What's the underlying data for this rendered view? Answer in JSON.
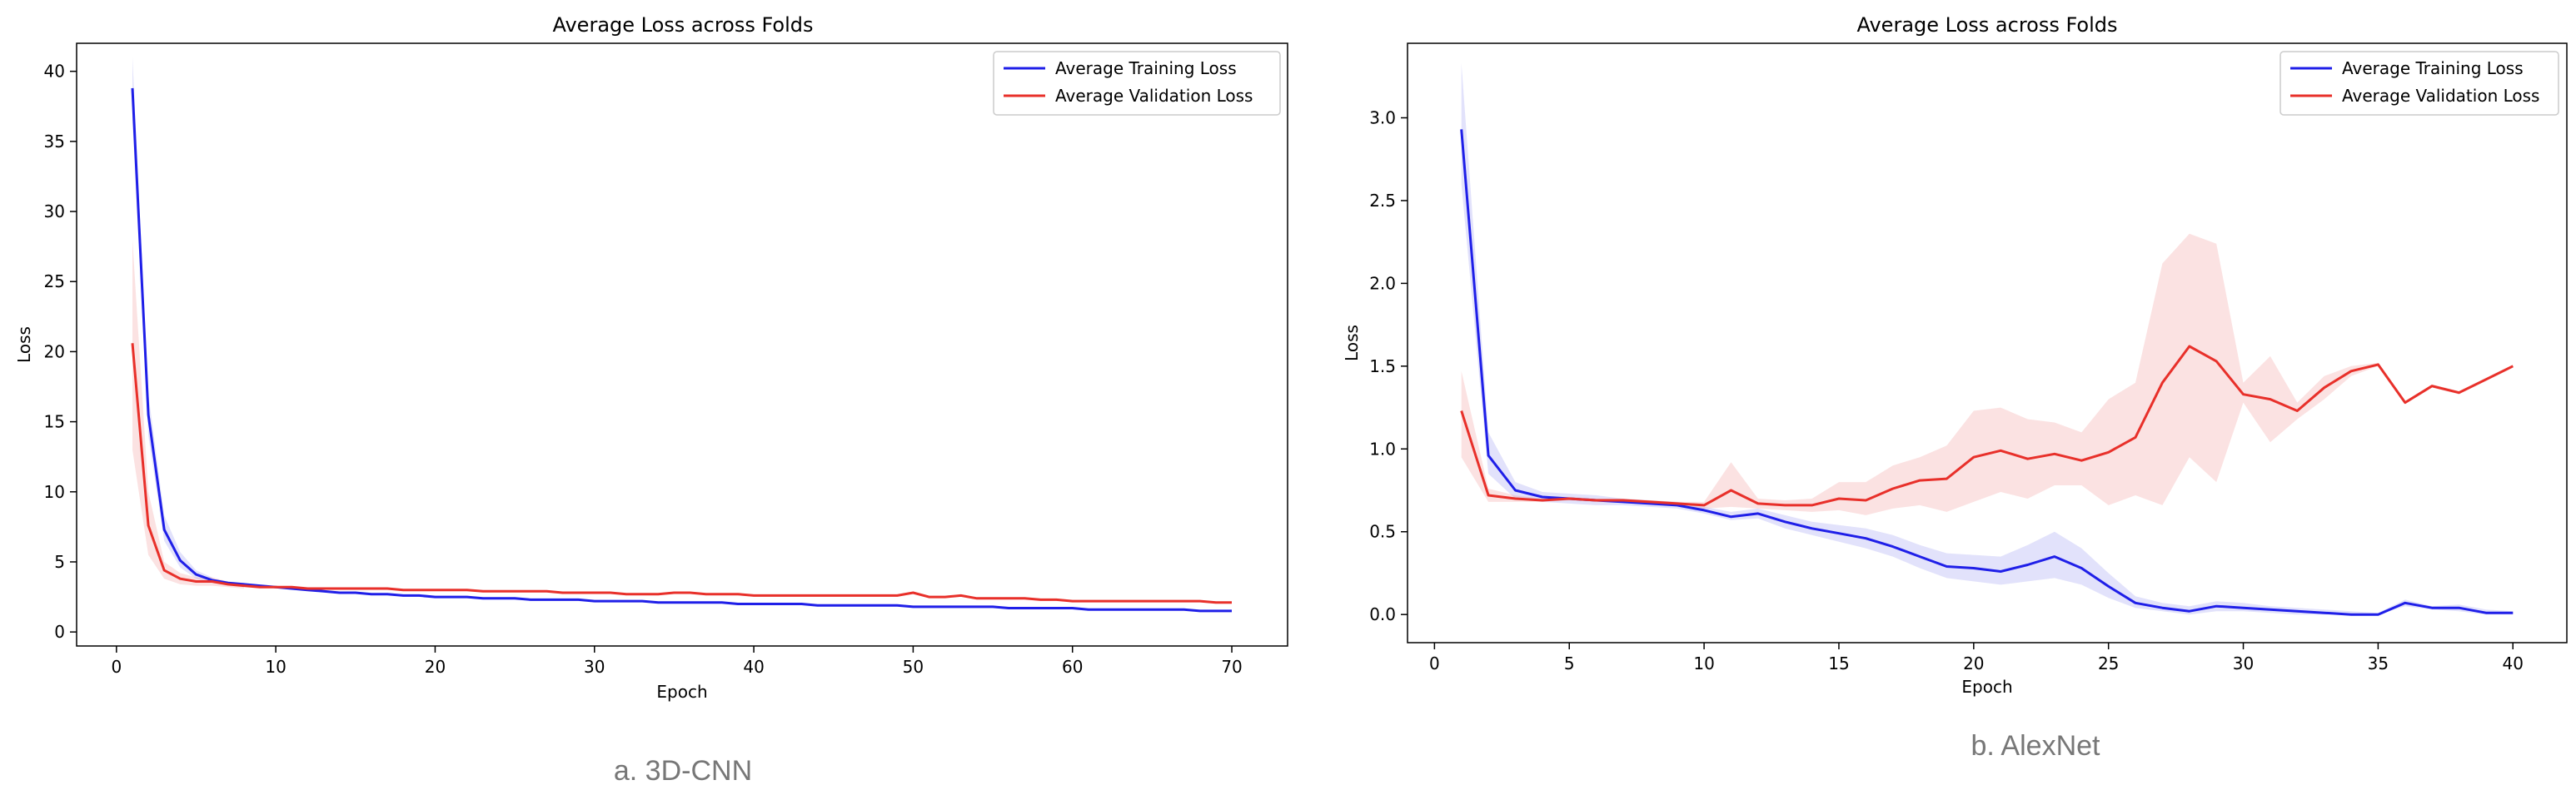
{
  "colors": {
    "training": "#1f1fe8",
    "validation": "#e8302a",
    "training_band": "#8c8cf0",
    "validation_band": "#f08c8c",
    "caption": "#777777"
  },
  "captions": [
    "a. 3D-CNN",
    "b. AlexNet"
  ],
  "chart_data": [
    {
      "type": "line",
      "title": "Average Loss across Folds",
      "xlabel": "Epoch",
      "ylabel": "Loss",
      "xlim": [
        -2.5,
        73.5
      ],
      "ylim": [
        -1,
        42
      ],
      "xticks": [
        0,
        10,
        20,
        30,
        40,
        50,
        60,
        70
      ],
      "yticks": [
        0,
        5,
        10,
        15,
        20,
        25,
        30,
        35,
        40
      ],
      "legend_position": "top-right",
      "grid": false,
      "series": [
        {
          "name": "Average Training Loss",
          "x": [
            1,
            2,
            3,
            4,
            5,
            6,
            7,
            8,
            9,
            10,
            11,
            12,
            13,
            14,
            15,
            16,
            17,
            18,
            19,
            20,
            21,
            22,
            23,
            24,
            25,
            26,
            27,
            28,
            29,
            30,
            31,
            32,
            33,
            34,
            35,
            36,
            37,
            38,
            39,
            40,
            41,
            42,
            43,
            44,
            45,
            46,
            47,
            48,
            49,
            50,
            51,
            52,
            53,
            54,
            55,
            56,
            57,
            58,
            59,
            60,
            61,
            62,
            63,
            64,
            65,
            66,
            67,
            68,
            69,
            70
          ],
          "y": [
            38.8,
            15.5,
            7.3,
            5.1,
            4.1,
            3.7,
            3.5,
            3.4,
            3.3,
            3.2,
            3.1,
            3.0,
            2.9,
            2.8,
            2.8,
            2.7,
            2.7,
            2.6,
            2.6,
            2.5,
            2.5,
            2.5,
            2.4,
            2.4,
            2.4,
            2.3,
            2.3,
            2.3,
            2.3,
            2.2,
            2.2,
            2.2,
            2.2,
            2.1,
            2.1,
            2.1,
            2.1,
            2.1,
            2.0,
            2.0,
            2.0,
            2.0,
            2.0,
            1.9,
            1.9,
            1.9,
            1.9,
            1.9,
            1.9,
            1.8,
            1.8,
            1.8,
            1.8,
            1.8,
            1.8,
            1.7,
            1.7,
            1.7,
            1.7,
            1.7,
            1.6,
            1.6,
            1.6,
            1.6,
            1.6,
            1.6,
            1.6,
            1.5,
            1.5,
            1.5
          ],
          "band": {
            "x": [
              1,
              2,
              3,
              4,
              5,
              6
            ],
            "lower": [
              36.5,
              14.0,
              6.5,
              4.6,
              3.8,
              3.5
            ],
            "upper": [
              41.0,
              17.0,
              8.3,
              5.7,
              4.4,
              3.9
            ]
          }
        },
        {
          "name": "Average Validation Loss",
          "x": [
            1,
            2,
            3,
            4,
            5,
            6,
            7,
            8,
            9,
            10,
            11,
            12,
            13,
            14,
            15,
            16,
            17,
            18,
            19,
            20,
            21,
            22,
            23,
            24,
            25,
            26,
            27,
            28,
            29,
            30,
            31,
            32,
            33,
            34,
            35,
            36,
            37,
            38,
            39,
            40,
            41,
            42,
            43,
            44,
            45,
            46,
            47,
            48,
            49,
            50,
            51,
            52,
            53,
            54,
            55,
            56,
            57,
            58,
            59,
            60,
            61,
            62,
            63,
            64,
            65,
            66,
            67,
            68,
            69,
            70
          ],
          "y": [
            20.6,
            7.6,
            4.4,
            3.8,
            3.6,
            3.6,
            3.4,
            3.3,
            3.2,
            3.2,
            3.2,
            3.1,
            3.1,
            3.1,
            3.1,
            3.1,
            3.1,
            3.0,
            3.0,
            3.0,
            3.0,
            3.0,
            2.9,
            2.9,
            2.9,
            2.9,
            2.9,
            2.8,
            2.8,
            2.8,
            2.8,
            2.7,
            2.7,
            2.7,
            2.8,
            2.8,
            2.7,
            2.7,
            2.7,
            2.6,
            2.6,
            2.6,
            2.6,
            2.6,
            2.6,
            2.6,
            2.6,
            2.6,
            2.6,
            2.8,
            2.5,
            2.5,
            2.6,
            2.4,
            2.4,
            2.4,
            2.4,
            2.3,
            2.3,
            2.2,
            2.2,
            2.2,
            2.2,
            2.2,
            2.2,
            2.2,
            2.2,
            2.2,
            2.1,
            2.1
          ],
          "band": {
            "x": [
              1,
              2,
              3,
              4,
              5,
              6,
              7,
              8
            ],
            "lower": [
              13.0,
              5.5,
              3.8,
              3.4,
              3.3,
              3.3,
              3.2,
              3.1
            ],
            "upper": [
              28.0,
              10.0,
              5.0,
              4.2,
              3.9,
              3.9,
              3.6,
              3.5
            ]
          }
        }
      ]
    },
    {
      "type": "line",
      "title": "Average Loss across Folds",
      "xlabel": "Epoch",
      "ylabel": "Loss",
      "xlim": [
        -1,
        42
      ],
      "ylim": [
        -0.17,
        3.45
      ],
      "xticks": [
        0,
        5,
        10,
        15,
        20,
        25,
        30,
        35,
        40
      ],
      "yticks": [
        0.0,
        0.5,
        1.0,
        1.5,
        2.0,
        2.5,
        3.0
      ],
      "ytick_labels": [
        "0.0",
        "0.5",
        "1.0",
        "1.5",
        "2.0",
        "2.5",
        "3.0"
      ],
      "legend_position": "top-right",
      "grid": false,
      "series": [
        {
          "name": "Average Training Loss",
          "x": [
            1,
            2,
            3,
            4,
            5,
            6,
            7,
            8,
            9,
            10,
            11,
            12,
            13,
            14,
            15,
            16,
            17,
            18,
            19,
            20,
            21,
            22,
            23,
            24,
            25,
            26,
            27,
            28,
            29,
            30,
            31,
            32,
            33,
            34,
            35,
            36,
            37,
            38,
            39,
            40
          ],
          "y": [
            2.93,
            0.96,
            0.75,
            0.71,
            0.7,
            0.69,
            0.68,
            0.67,
            0.66,
            0.63,
            0.59,
            0.61,
            0.56,
            0.52,
            0.49,
            0.46,
            0.41,
            0.35,
            0.29,
            0.28,
            0.26,
            0.3,
            0.35,
            0.28,
            0.17,
            0.07,
            0.04,
            0.02,
            0.05,
            0.04,
            0.03,
            0.02,
            0.01,
            0.0,
            0.0,
            0.07,
            0.04,
            0.04,
            0.01,
            0.01
          ],
          "band_lower": [
            2.6,
            0.85,
            0.7,
            0.68,
            0.67,
            0.66,
            0.66,
            0.65,
            0.64,
            0.61,
            0.57,
            0.58,
            0.52,
            0.48,
            0.44,
            0.4,
            0.35,
            0.28,
            0.22,
            0.2,
            0.18,
            0.2,
            0.22,
            0.18,
            0.1,
            0.04,
            0.02,
            0.0,
            0.02,
            0.02,
            0.01,
            0.0,
            0.0,
            0.0,
            0.0,
            0.05,
            0.03,
            0.02,
            0.0,
            0.0
          ],
          "band_upper": [
            3.33,
            1.1,
            0.8,
            0.74,
            0.73,
            0.72,
            0.7,
            0.69,
            0.68,
            0.65,
            0.62,
            0.64,
            0.6,
            0.56,
            0.54,
            0.52,
            0.48,
            0.42,
            0.37,
            0.36,
            0.35,
            0.42,
            0.5,
            0.4,
            0.25,
            0.11,
            0.07,
            0.05,
            0.08,
            0.07,
            0.05,
            0.04,
            0.03,
            0.02,
            0.01,
            0.09,
            0.05,
            0.06,
            0.03,
            0.02
          ]
        },
        {
          "name": "Average Validation Loss",
          "x": [
            1,
            2,
            3,
            4,
            5,
            6,
            7,
            8,
            9,
            10,
            11,
            12,
            13,
            14,
            15,
            16,
            17,
            18,
            19,
            20,
            21,
            22,
            23,
            24,
            25,
            26,
            27,
            28,
            29,
            30,
            31,
            32,
            33,
            34,
            35,
            36,
            37,
            38,
            39,
            40
          ],
          "y": [
            1.23,
            0.72,
            0.7,
            0.69,
            0.7,
            0.69,
            0.69,
            0.68,
            0.67,
            0.66,
            0.75,
            0.67,
            0.66,
            0.66,
            0.7,
            0.69,
            0.76,
            0.81,
            0.82,
            0.95,
            0.99,
            0.94,
            0.97,
            0.93,
            0.98,
            1.07,
            1.4,
            1.62,
            1.53,
            1.33,
            1.3,
            1.23,
            1.37,
            1.47,
            1.51,
            1.28,
            1.38,
            1.34,
            1.42,
            1.5
          ],
          "band_lower": [
            0.95,
            0.68,
            0.68,
            0.68,
            0.69,
            0.68,
            0.68,
            0.67,
            0.66,
            0.64,
            0.65,
            0.64,
            0.63,
            0.62,
            0.63,
            0.6,
            0.64,
            0.66,
            0.62,
            0.68,
            0.74,
            0.7,
            0.78,
            0.78,
            0.66,
            0.72,
            0.66,
            0.95,
            0.8,
            1.28,
            1.04,
            1.18,
            1.3,
            1.44,
            1.5,
            1.27,
            1.37,
            1.33,
            1.41,
            1.49
          ],
          "band_upper": [
            1.47,
            0.76,
            0.72,
            0.7,
            0.71,
            0.7,
            0.7,
            0.69,
            0.68,
            0.68,
            0.92,
            0.7,
            0.69,
            0.7,
            0.8,
            0.8,
            0.9,
            0.95,
            1.02,
            1.23,
            1.25,
            1.18,
            1.16,
            1.1,
            1.3,
            1.4,
            2.12,
            2.3,
            2.24,
            1.4,
            1.56,
            1.28,
            1.44,
            1.5,
            1.52,
            1.29,
            1.39,
            1.35,
            1.43,
            1.51
          ]
        }
      ]
    }
  ]
}
